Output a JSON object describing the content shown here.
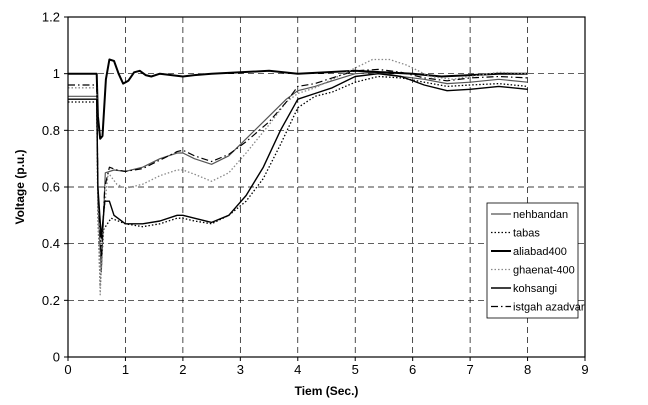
{
  "chart_data": {
    "type": "line",
    "title": "",
    "xlabel": "Tiem (Sec.)",
    "ylabel": "Voltage (p.u.)",
    "xlim": [
      0,
      9
    ],
    "ylim": [
      0,
      1.2
    ],
    "x_ticks": [
      "0",
      "1",
      "2",
      "3",
      "4",
      "5",
      "6",
      "7",
      "8",
      "9"
    ],
    "y_ticks": [
      "0",
      "0.2",
      "0.4",
      "0.6",
      "0.8",
      "1",
      "1.2"
    ],
    "grid": "dashed",
    "legend_position": "lower-right",
    "series": [
      {
        "name": "nehbandan",
        "style": "solid-thin",
        "color": "#555555",
        "points": [
          [
            0,
            0.92
          ],
          [
            0.5,
            0.92
          ],
          [
            0.52,
            0.55
          ],
          [
            0.58,
            0.3
          ],
          [
            0.65,
            0.65
          ],
          [
            0.8,
            0.66
          ],
          [
            1,
            0.655
          ],
          [
            1.3,
            0.67
          ],
          [
            1.6,
            0.7
          ],
          [
            1.9,
            0.72
          ],
          [
            2,
            0.72
          ],
          [
            2.2,
            0.7
          ],
          [
            2.5,
            0.68
          ],
          [
            2.8,
            0.71
          ],
          [
            3.1,
            0.77
          ],
          [
            3.5,
            0.85
          ],
          [
            3.8,
            0.91
          ],
          [
            4,
            0.94
          ],
          [
            4.3,
            0.955
          ],
          [
            4.6,
            0.975
          ],
          [
            5,
            1.0
          ],
          [
            5.4,
            1.005
          ],
          [
            5.8,
            0.99
          ],
          [
            6.2,
            0.98
          ],
          [
            6.6,
            0.965
          ],
          [
            7,
            0.97
          ],
          [
            7.5,
            0.98
          ],
          [
            8,
            0.97
          ]
        ]
      },
      {
        "name": "tabas",
        "style": "dotted",
        "color": "#000000",
        "points": [
          [
            0,
            0.9
          ],
          [
            0.5,
            0.9
          ],
          [
            0.52,
            0.5
          ],
          [
            0.56,
            0.25
          ],
          [
            0.62,
            0.45
          ],
          [
            0.75,
            0.49
          ],
          [
            1,
            0.47
          ],
          [
            1.3,
            0.46
          ],
          [
            1.6,
            0.47
          ],
          [
            1.9,
            0.49
          ],
          [
            2,
            0.49
          ],
          [
            2.2,
            0.48
          ],
          [
            2.5,
            0.47
          ],
          [
            2.8,
            0.5
          ],
          [
            3.1,
            0.55
          ],
          [
            3.4,
            0.63
          ],
          [
            3.7,
            0.75
          ],
          [
            4,
            0.88
          ],
          [
            4.3,
            0.92
          ],
          [
            4.6,
            0.935
          ],
          [
            5,
            0.97
          ],
          [
            5.4,
            0.99
          ],
          [
            5.8,
            0.985
          ],
          [
            6.2,
            0.97
          ],
          [
            6.6,
            0.955
          ],
          [
            7,
            0.96
          ],
          [
            7.5,
            0.965
          ],
          [
            8,
            0.955
          ]
        ]
      },
      {
        "name": "aliabad400",
        "style": "solid-thick",
        "color": "#000000",
        "points": [
          [
            0,
            1.0
          ],
          [
            0.5,
            1.0
          ],
          [
            0.52,
            0.85
          ],
          [
            0.56,
            0.77
          ],
          [
            0.6,
            0.78
          ],
          [
            0.66,
            0.98
          ],
          [
            0.72,
            1.05
          ],
          [
            0.8,
            1.045
          ],
          [
            0.88,
            1.0
          ],
          [
            0.96,
            0.965
          ],
          [
            1.05,
            0.975
          ],
          [
            1.15,
            1.005
          ],
          [
            1.25,
            1.01
          ],
          [
            1.35,
            0.995
          ],
          [
            1.45,
            0.99
          ],
          [
            1.6,
            1.0
          ],
          [
            1.8,
            0.995
          ],
          [
            2,
            0.99
          ],
          [
            2.2,
            0.995
          ],
          [
            2.5,
            1.0
          ],
          [
            3,
            1.005
          ],
          [
            3.5,
            1.01
          ],
          [
            4,
            1.0
          ],
          [
            4.5,
            1.005
          ],
          [
            5,
            1.01
          ],
          [
            5.5,
            1.005
          ],
          [
            6,
            1.0
          ],
          [
            6.5,
            0.99
          ],
          [
            7,
            0.995
          ],
          [
            7.5,
            1.0
          ],
          [
            8,
            1.0
          ]
        ]
      },
      {
        "name": "ghaenat-400",
        "style": "dotted",
        "color": "#888888",
        "points": [
          [
            0,
            0.95
          ],
          [
            0.5,
            0.95
          ],
          [
            0.52,
            0.55
          ],
          [
            0.56,
            0.22
          ],
          [
            0.62,
            0.5
          ],
          [
            0.7,
            0.65
          ],
          [
            0.85,
            0.61
          ],
          [
            1,
            0.595
          ],
          [
            1.3,
            0.61
          ],
          [
            1.6,
            0.64
          ],
          [
            1.9,
            0.66
          ],
          [
            2,
            0.66
          ],
          [
            2.2,
            0.645
          ],
          [
            2.5,
            0.62
          ],
          [
            2.8,
            0.65
          ],
          [
            3.1,
            0.72
          ],
          [
            3.5,
            0.82
          ],
          [
            3.8,
            0.9
          ],
          [
            4,
            0.93
          ],
          [
            4.3,
            0.95
          ],
          [
            4.7,
            0.99
          ],
          [
            5,
            1.02
          ],
          [
            5.3,
            1.05
          ],
          [
            5.6,
            1.05
          ],
          [
            5.9,
            1.03
          ],
          [
            6.3,
            0.99
          ],
          [
            6.7,
            0.98
          ],
          [
            7,
            0.99
          ],
          [
            7.5,
            1.005
          ],
          [
            8,
            1.0
          ]
        ]
      },
      {
        "name": "kohsangi",
        "style": "solid",
        "color": "#000000",
        "points": [
          [
            0,
            0.91
          ],
          [
            0.5,
            0.91
          ],
          [
            0.52,
            0.6
          ],
          [
            0.58,
            0.42
          ],
          [
            0.64,
            0.55
          ],
          [
            0.72,
            0.55
          ],
          [
            0.8,
            0.5
          ],
          [
            1,
            0.47
          ],
          [
            1.3,
            0.47
          ],
          [
            1.6,
            0.48
          ],
          [
            1.9,
            0.5
          ],
          [
            2,
            0.5
          ],
          [
            2.2,
            0.49
          ],
          [
            2.5,
            0.475
          ],
          [
            2.8,
            0.5
          ],
          [
            3.1,
            0.57
          ],
          [
            3.4,
            0.67
          ],
          [
            3.7,
            0.8
          ],
          [
            4,
            0.91
          ],
          [
            4.3,
            0.93
          ],
          [
            4.6,
            0.95
          ],
          [
            5,
            0.99
          ],
          [
            5.4,
            1.0
          ],
          [
            5.8,
            0.99
          ],
          [
            6.2,
            0.96
          ],
          [
            6.6,
            0.94
          ],
          [
            7,
            0.945
          ],
          [
            7.5,
            0.955
          ],
          [
            8,
            0.945
          ]
        ]
      },
      {
        "name": "istgah azadvar",
        "style": "dash-dot",
        "color": "#000000",
        "points": [
          [
            0,
            0.96
          ],
          [
            0.5,
            0.96
          ],
          [
            0.52,
            0.6
          ],
          [
            0.58,
            0.35
          ],
          [
            0.64,
            0.6
          ],
          [
            0.72,
            0.67
          ],
          [
            0.85,
            0.66
          ],
          [
            1,
            0.655
          ],
          [
            1.3,
            0.665
          ],
          [
            1.6,
            0.695
          ],
          [
            1.9,
            0.725
          ],
          [
            2,
            0.73
          ],
          [
            2.2,
            0.71
          ],
          [
            2.5,
            0.69
          ],
          [
            2.8,
            0.715
          ],
          [
            3.1,
            0.76
          ],
          [
            3.5,
            0.83
          ],
          [
            3.8,
            0.9
          ],
          [
            4,
            0.955
          ],
          [
            4.3,
            0.965
          ],
          [
            4.6,
            0.985
          ],
          [
            5,
            1.01
          ],
          [
            5.4,
            1.015
          ],
          [
            5.8,
            1.005
          ],
          [
            6.2,
            0.985
          ],
          [
            6.6,
            0.975
          ],
          [
            7,
            0.985
          ],
          [
            7.5,
            0.99
          ],
          [
            8,
            0.985
          ]
        ]
      }
    ]
  }
}
